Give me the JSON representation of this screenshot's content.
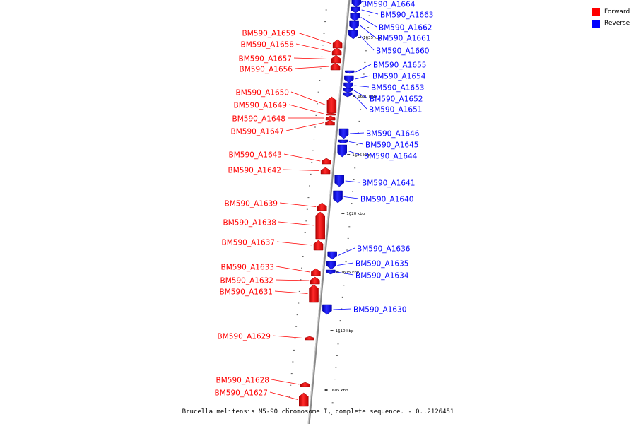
{
  "caption": "Brucella melitensis M5-90 chromosome I, complete sequence. - 0..2126451",
  "legend": [
    {
      "label": "Forward",
      "color": "#ff0000"
    },
    {
      "label": "Reverse",
      "color": "#0000ff"
    }
  ],
  "colors": {
    "forward": "#ff0000",
    "reverse": "#0000ff",
    "axis": "#888888"
  },
  "ticks": [
    "1635 kbp",
    "1630 kbp",
    "1625 kbp",
    "1620 kbp",
    "1615 kbp",
    "1610 kbp",
    "1605 kbp"
  ],
  "genes": {
    "forward": [
      "BM590_A1659",
      "BM590_A1658",
      "BM590_A1657",
      "BM590_A1656",
      "BM590_A1650",
      "BM590_A1649",
      "BM590_A1648",
      "BM590_A1647",
      "BM590_A1643",
      "BM590_A1642",
      "BM590_A1639",
      "BM590_A1638",
      "BM590_A1637",
      "BM590_A1633",
      "BM590_A1632",
      "BM590_A1631",
      "BM590_A1629",
      "BM590_A1628",
      "BM590_A1627"
    ],
    "reverse": [
      "BM590_A1664",
      "BM590_A1663",
      "BM590_A1662",
      "BM590_A1661",
      "BM590_A1660",
      "BM590_A1655",
      "BM590_A1654",
      "BM590_A1653",
      "BM590_A1652",
      "BM590_A1651",
      "BM590_A1646",
      "BM590_A1645",
      "BM590_A1644",
      "BM590_A1641",
      "BM590_A1640",
      "BM590_A1636",
      "BM590_A1635",
      "BM590_A1634",
      "BM590_A1630"
    ]
  }
}
